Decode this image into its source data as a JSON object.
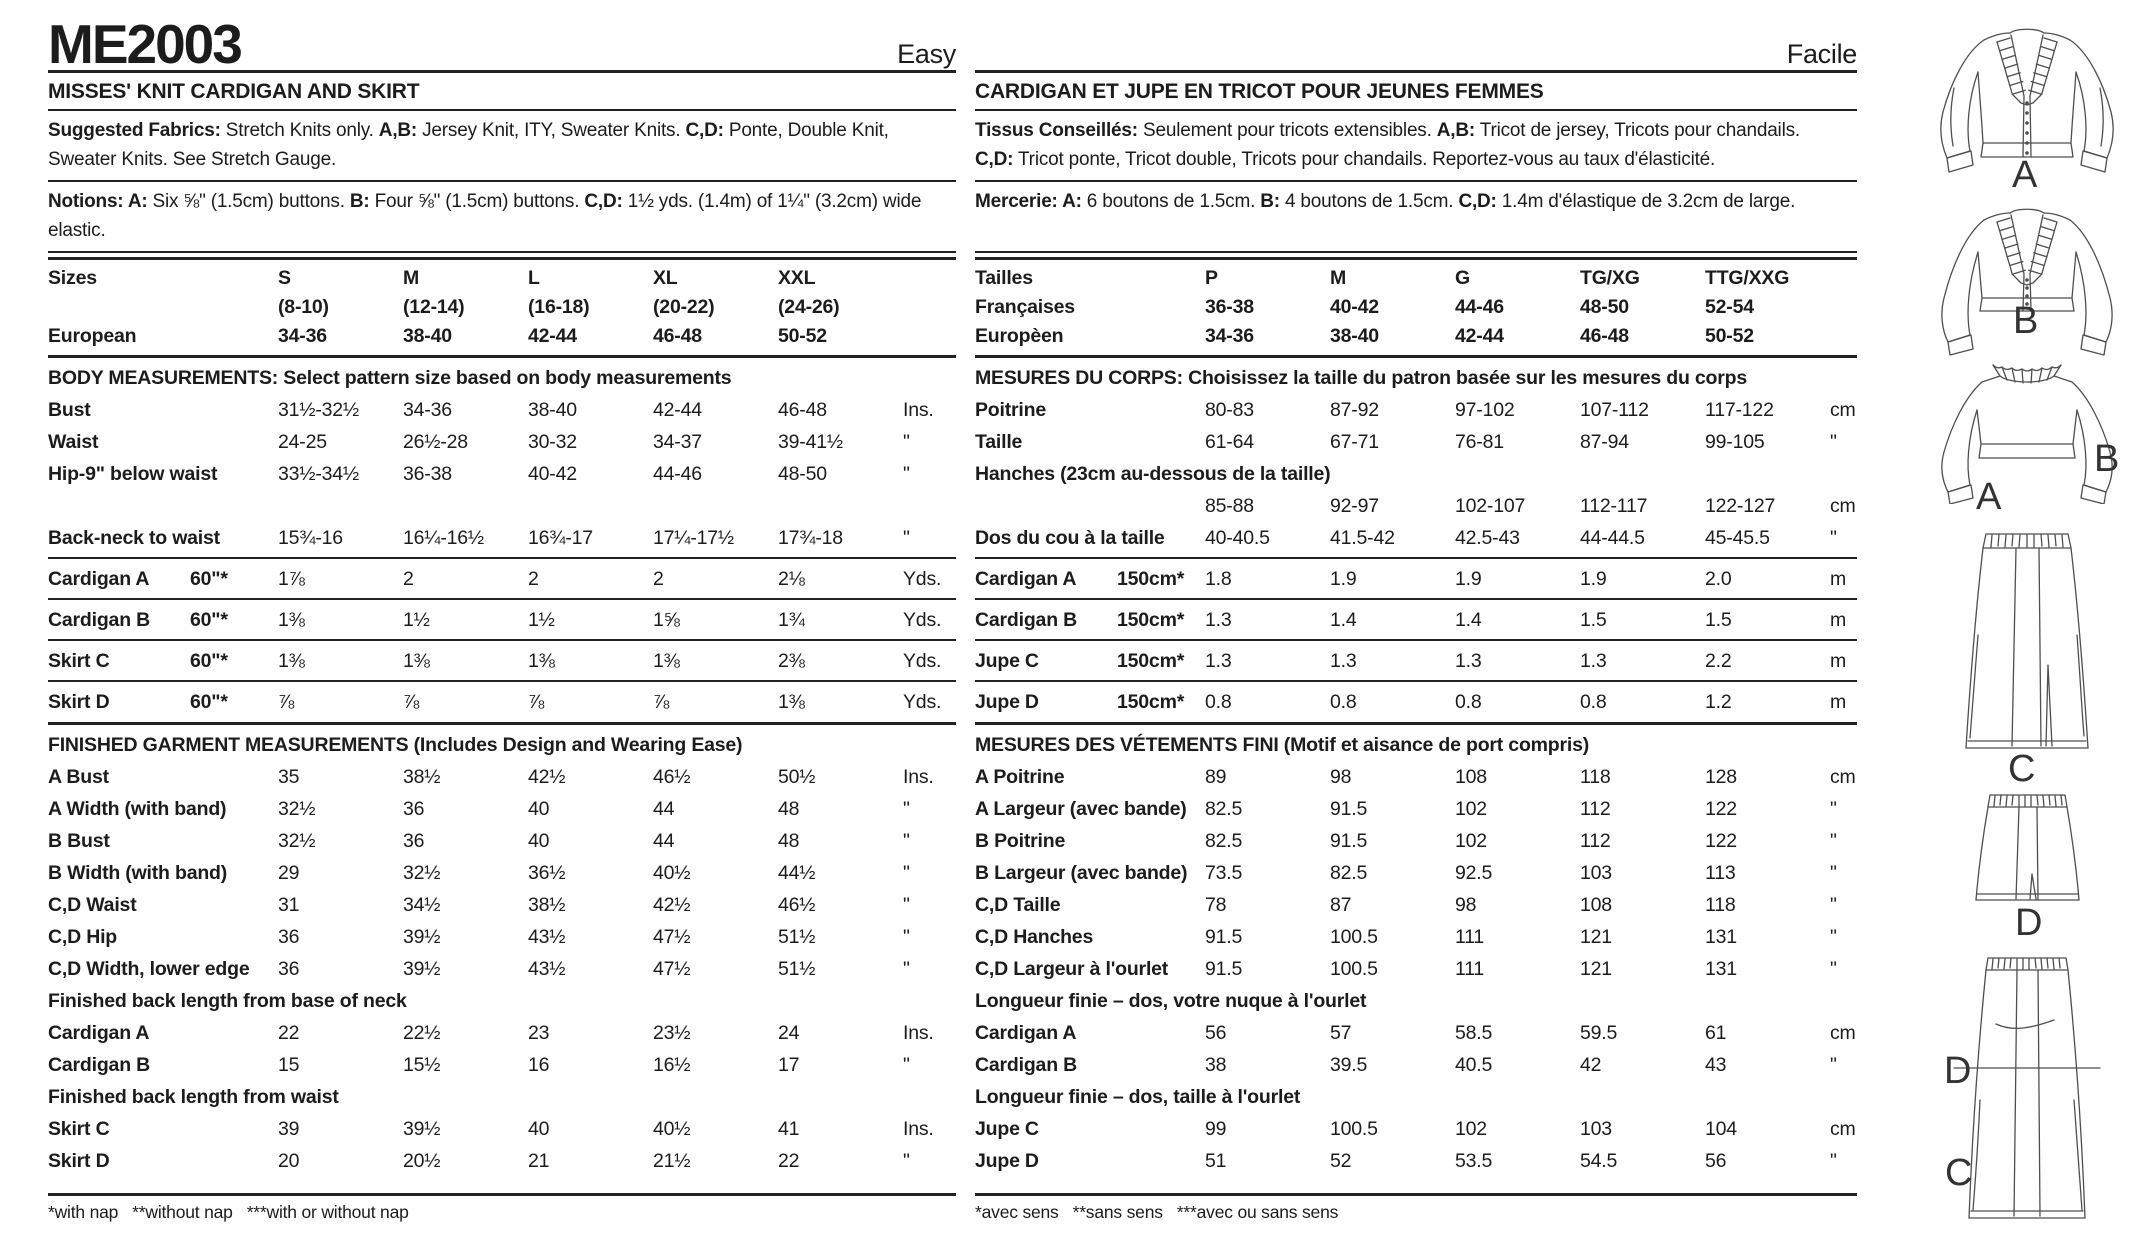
{
  "header": {
    "pattern_number": "ME2003",
    "difficulty_en": "Easy",
    "difficulty_fr": "Facile"
  },
  "english": {
    "subject": "MISSES' KNIT CARDIGAN AND SKIRT",
    "fabrics": [
      [
        {
          "b": "Suggested Fabrics:"
        },
        {
          "t": " Stretch Knits only. "
        },
        {
          "b": "A,B:"
        },
        {
          "t": " Jersey Knit, ITY, Sweater Knits. "
        },
        {
          "b": "C,D:"
        },
        {
          "t": " Ponte, Double Knit,"
        }
      ],
      [
        {
          "t": "Sweater Knits. See Stretch Gauge."
        }
      ]
    ],
    "notions": [
      [
        {
          "b": "Notions: A:"
        },
        {
          "t": " Six ⅝\" (1.5cm) buttons. "
        },
        {
          "b": "B:"
        },
        {
          "t": " Four ⅝\" (1.5cm) buttons. "
        },
        {
          "b": "C,D:"
        },
        {
          "t": " 1½ yds. (1.4m) of 1¼\" (3.2cm) wide"
        }
      ],
      [
        {
          "t": "elastic."
        }
      ]
    ],
    "rows": [
      {
        "t": "sizes",
        "label": "Sizes",
        "cells": [
          "S",
          "M",
          "L",
          "XL",
          "XXL"
        ],
        "unit": ""
      },
      {
        "t": "sizes",
        "label": "",
        "cells": [
          "(8-10)",
          "(12-14)",
          "(16-18)",
          "(20-22)",
          "(24-26)"
        ],
        "unit": ""
      },
      {
        "t": "sizes",
        "label": "European",
        "cells": [
          "34-36",
          "38-40",
          "42-44",
          "46-48",
          "50-52"
        ],
        "unit": ""
      },
      {
        "t": "drule"
      },
      {
        "t": "section",
        "text": "BODY MEASUREMENTS: Select pattern size based on body measurements"
      },
      {
        "t": "data",
        "label": "Bust",
        "cells": [
          "31½-32½",
          "34-36",
          "38-40",
          "42-44",
          "46-48"
        ],
        "unit": "Ins."
      },
      {
        "t": "data",
        "label": "Waist",
        "cells": [
          "24-25",
          "26½-28",
          "30-32",
          "34-37",
          "39-41½"
        ],
        "unit": "\""
      },
      {
        "t": "data",
        "label": "Hip-9\" below waist",
        "cells": [
          "33½-34½",
          "36-38",
          "40-42",
          "44-46",
          "48-50"
        ],
        "unit": "\""
      },
      {
        "t": "blank"
      },
      {
        "t": "data",
        "label": "Back-neck to waist",
        "cells": [
          "15¾-16",
          "16¼-16½",
          "16¾-17",
          "17¼-17½",
          "17¾-18"
        ],
        "unit": "\""
      },
      {
        "t": "rule"
      },
      {
        "t": "data",
        "label": "Cardigan A",
        "spec": "60\"*",
        "cells": [
          "1⅞",
          "2",
          "2",
          "2",
          "2⅛"
        ],
        "unit": "Yds."
      },
      {
        "t": "rule"
      },
      {
        "t": "data",
        "label": "Cardigan B",
        "spec": "60\"*",
        "cells": [
          "1⅜",
          "1½",
          "1½",
          "1⅝",
          "1¾"
        ],
        "unit": "Yds."
      },
      {
        "t": "rule"
      },
      {
        "t": "data",
        "label": "Skirt C",
        "spec": "60\"*",
        "cells": [
          "1⅜",
          "1⅜",
          "1⅜",
          "1⅜",
          "2⅜"
        ],
        "unit": "Yds."
      },
      {
        "t": "rule"
      },
      {
        "t": "data",
        "label": "Skirt D",
        "spec": "60\"*",
        "cells": [
          "⅞",
          "⅞",
          "⅞",
          "⅞",
          "1⅜"
        ],
        "unit": "Yds."
      },
      {
        "t": "drule"
      },
      {
        "t": "section",
        "text": "FINISHED GARMENT MEASUREMENTS (Includes Design and Wearing Ease)"
      },
      {
        "t": "data",
        "label": "A Bust",
        "cells": [
          "35",
          "38½",
          "42½",
          "46½",
          "50½"
        ],
        "unit": "Ins."
      },
      {
        "t": "data",
        "label": "A Width (with band)",
        "cells": [
          "32½",
          "36",
          "40",
          "44",
          "48"
        ],
        "unit": "\""
      },
      {
        "t": "data",
        "label": "B Bust",
        "cells": [
          "32½",
          "36",
          "40",
          "44",
          "48"
        ],
        "unit": "\""
      },
      {
        "t": "data",
        "label": "B Width (with band)",
        "cells": [
          "29",
          "32½",
          "36½",
          "40½",
          "44½"
        ],
        "unit": "\""
      },
      {
        "t": "data",
        "label": "C,D Waist",
        "cells": [
          "31",
          "34½",
          "38½",
          "42½",
          "46½"
        ],
        "unit": "\""
      },
      {
        "t": "data",
        "label": "C,D Hip",
        "cells": [
          "36",
          "39½",
          "43½",
          "47½",
          "51½"
        ],
        "unit": "\""
      },
      {
        "t": "data",
        "label": "C,D Width, lower edge",
        "cells": [
          "36",
          "39½",
          "43½",
          "47½",
          "51½"
        ],
        "unit": "\""
      },
      {
        "t": "section",
        "text": "Finished back length from base of neck"
      },
      {
        "t": "data",
        "label": "Cardigan A",
        "cells": [
          "22",
          "22½",
          "23",
          "23½",
          "24"
        ],
        "unit": "Ins."
      },
      {
        "t": "data",
        "label": "Cardigan B",
        "cells": [
          "15",
          "15½",
          "16",
          "16½",
          "17"
        ],
        "unit": "\""
      },
      {
        "t": "section",
        "text": "Finished back length from waist"
      },
      {
        "t": "data",
        "label": "Skirt C",
        "cells": [
          "39",
          "39½",
          "40",
          "40½",
          "41"
        ],
        "unit": "Ins."
      },
      {
        "t": "data",
        "label": "Skirt D",
        "cells": [
          "20",
          "20½",
          "21",
          "21½",
          "22"
        ],
        "unit": "\""
      }
    ],
    "footnote": "*with nap   **without nap   ***with or without nap"
  },
  "french": {
    "subject": "CARDIGAN ET JUPE EN TRICOT POUR JEUNES FEMMES",
    "fabrics": [
      [
        {
          "b": "Tissus Conseillés:"
        },
        {
          "t": " Seulement pour tricots extensibles. "
        },
        {
          "b": "A,B:"
        },
        {
          "t": " Tricot de jersey, Tricots pour chandails."
        }
      ],
      [
        {
          "b": "C,D:"
        },
        {
          "t": " Tricot ponte, Tricot double, Tricots pour chandails. Reportez-vous au taux d'élasticité."
        }
      ]
    ],
    "notions": [
      [
        {
          "b": "Mercerie: A:"
        },
        {
          "t": " 6 boutons de 1.5cm. "
        },
        {
          "b": "B:"
        },
        {
          "t": " 4 boutons de 1.5cm. "
        },
        {
          "b": "C,D:"
        },
        {
          "t": " 1.4m d'élastique de 3.2cm de large."
        }
      ]
    ],
    "rows": [
      {
        "t": "sizes",
        "label": "Tailles",
        "cells": [
          "P",
          "M",
          "G",
          "TG/XG",
          "TTG/XXG"
        ],
        "unit": ""
      },
      {
        "t": "sizes",
        "label": "Françaises",
        "cells": [
          "36-38",
          "40-42",
          "44-46",
          "48-50",
          "52-54"
        ],
        "unit": ""
      },
      {
        "t": "sizes",
        "label": "Europèen",
        "cells": [
          "34-36",
          "38-40",
          "42-44",
          "46-48",
          "50-52"
        ],
        "unit": ""
      },
      {
        "t": "drule"
      },
      {
        "t": "section",
        "text": "MESURES DU CORPS: Choisissez la taille du patron basée sur les mesures du corps"
      },
      {
        "t": "data",
        "label": "Poitrine",
        "cells": [
          "80-83",
          "87-92",
          "97-102",
          "107-112",
          "117-122"
        ],
        "unit": "cm"
      },
      {
        "t": "data",
        "label": "Taille",
        "cells": [
          "61-64",
          "67-71",
          "76-81",
          "87-94",
          "99-105"
        ],
        "unit": "\""
      },
      {
        "t": "section",
        "text": "Hanches (23cm au-dessous de la taille)"
      },
      {
        "t": "data",
        "label": "",
        "cells": [
          "85-88",
          "92-97",
          "102-107",
          "112-117",
          "122-127"
        ],
        "unit": "cm"
      },
      {
        "t": "data",
        "label": "Dos du cou à la taille",
        "cells": [
          "40-40.5",
          "41.5-42",
          "42.5-43",
          "44-44.5",
          "45-45.5"
        ],
        "unit": "\""
      },
      {
        "t": "rule"
      },
      {
        "t": "data",
        "label": "Cardigan A",
        "spec": "150cm*",
        "cells": [
          "1.8",
          "1.9",
          "1.9",
          "1.9",
          "2.0"
        ],
        "unit": "m"
      },
      {
        "t": "rule"
      },
      {
        "t": "data",
        "label": "Cardigan B",
        "spec": "150cm*",
        "cells": [
          "1.3",
          "1.4",
          "1.4",
          "1.5",
          "1.5"
        ],
        "unit": "m"
      },
      {
        "t": "rule"
      },
      {
        "t": "data",
        "label": "Jupe C",
        "spec": "150cm*",
        "cells": [
          "1.3",
          "1.3",
          "1.3",
          "1.3",
          "2.2"
        ],
        "unit": "m"
      },
      {
        "t": "rule"
      },
      {
        "t": "data",
        "label": "Jupe D",
        "spec": "150cm*",
        "cells": [
          "0.8",
          "0.8",
          "0.8",
          "0.8",
          "1.2"
        ],
        "unit": "m"
      },
      {
        "t": "drule"
      },
      {
        "t": "section",
        "text": "MESURES DES VÉTEMENTS FINI (Motif et aisance de port compris)"
      },
      {
        "t": "data",
        "label": "A Poitrine",
        "cells": [
          "89",
          "98",
          "108",
          "118",
          "128"
        ],
        "unit": "cm"
      },
      {
        "t": "data",
        "label": "A Largeur (avec bande)",
        "cells": [
          "82.5",
          "91.5",
          "102",
          "112",
          "122"
        ],
        "unit": "\""
      },
      {
        "t": "data",
        "label": "B Poitrine",
        "cells": [
          "82.5",
          "91.5",
          "102",
          "112",
          "122"
        ],
        "unit": "\""
      },
      {
        "t": "data",
        "label": "B Largeur (avec bande)",
        "cells": [
          "73.5",
          "82.5",
          "92.5",
          "103",
          "113"
        ],
        "unit": "\""
      },
      {
        "t": "data",
        "label": "C,D Taille",
        "cells": [
          "78",
          "87",
          "98",
          "108",
          "118"
        ],
        "unit": "\""
      },
      {
        "t": "data",
        "label": "C,D Hanches",
        "cells": [
          "91.5",
          "100.5",
          "111",
          "121",
          "131"
        ],
        "unit": "\""
      },
      {
        "t": "data",
        "label": "C,D Largeur à l'ourlet",
        "cells": [
          "91.5",
          "100.5",
          "111",
          "121",
          "131"
        ],
        "unit": "\""
      },
      {
        "t": "section",
        "text": "Longueur finie – dos, votre nuque à l'ourlet"
      },
      {
        "t": "data",
        "label": "Cardigan A",
        "cells": [
          "56",
          "57",
          "58.5",
          "59.5",
          "61"
        ],
        "unit": "cm"
      },
      {
        "t": "data",
        "label": "Cardigan B",
        "cells": [
          "38",
          "39.5",
          "40.5",
          "42",
          "43"
        ],
        "unit": "\""
      },
      {
        "t": "section",
        "text": "Longueur finie – dos, taille à l'ourlet"
      },
      {
        "t": "data",
        "label": "Jupe C",
        "cells": [
          "99",
          "100.5",
          "102",
          "103",
          "104"
        ],
        "unit": "cm"
      },
      {
        "t": "data",
        "label": "Jupe D",
        "cells": [
          "51",
          "52",
          "53.5",
          "54.5",
          "56"
        ],
        "unit": "\""
      }
    ],
    "footnote": "*avec sens   **sans sens   ***avec ou sans sens"
  },
  "illustrations": {
    "view_a_front": "A",
    "view_b_front": "B",
    "back_label_b": "B",
    "back_label_a": "A",
    "view_c_front": "C",
    "view_d_front": "D",
    "back_label_d": "D",
    "back_label_c": "C"
  }
}
